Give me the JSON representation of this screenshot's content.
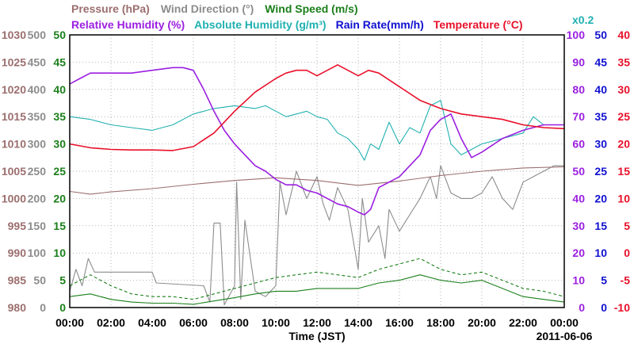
{
  "chart_data": {
    "type": "line",
    "date_label": "2011-06-06",
    "xlabel": "Time (JST)",
    "x_ticks": [
      "00:00",
      "02:00",
      "04:00",
      "06:00",
      "08:00",
      "10:00",
      "12:00",
      "14:00",
      "16:00",
      "18:00",
      "20:00",
      "22:00",
      "00:00"
    ],
    "x_range_hours": [
      0,
      24
    ],
    "grid": true,
    "legend": {
      "row1": [
        {
          "key": "pressure",
          "label": "Pressure (hPa)",
          "color": "#9c6e6e"
        },
        {
          "key": "wind_direction",
          "label": "Wind Direction (°)",
          "color": "#8c8c8c"
        },
        {
          "key": "wind_speed",
          "label": "Wind Speed (m/s)",
          "color": "#1a7f1a"
        }
      ],
      "row2": [
        {
          "key": "relative_humidity",
          "label": "Relative Humidity (%)",
          "color": "#9b1fe0"
        },
        {
          "key": "absolute_humidity",
          "label": "Absolute Humidity (g/m³)",
          "color": "#21b0b0"
        },
        {
          "key": "rain_rate",
          "label": "Rain Rate(mm/h)",
          "color": "#1010d0"
        },
        {
          "key": "temperature",
          "label": "Temperature (°C)",
          "color": "#e8102a"
        }
      ],
      "scale_note": {
        "label": "x0.2",
        "color": "#21b0b0"
      }
    },
    "left_axes": [
      {
        "key": "pressure",
        "color": "#9c6e6e",
        "range": [
          980,
          1030
        ],
        "ticks": [
          "980",
          "985",
          "990",
          "995",
          "1000",
          "1005",
          "1010",
          "1015",
          "1020",
          "1025",
          "1030"
        ]
      },
      {
        "key": "wind_direction",
        "color": "#8c8c8c",
        "range": [
          0,
          500
        ],
        "ticks": [
          "0",
          "50",
          "100",
          "150",
          "200",
          "250",
          "300",
          "350",
          "400",
          "450",
          "500"
        ]
      },
      {
        "key": "wind_speed",
        "color": "#1a7f1a",
        "range": [
          0,
          50
        ],
        "ticks": [
          "0",
          "5",
          "10",
          "15",
          "20",
          "25",
          "30",
          "35",
          "40",
          "45",
          "50"
        ]
      }
    ],
    "right_axes": [
      {
        "key": "relative_humidity",
        "color": "#9b1fe0",
        "range": [
          0,
          100
        ],
        "ticks": [
          "0",
          "10",
          "20",
          "30",
          "40",
          "50",
          "60",
          "70",
          "80",
          "90",
          "100"
        ]
      },
      {
        "key": "rain_rate",
        "color": "#1010d0",
        "range": [
          0,
          50
        ],
        "ticks": [
          "0",
          "5",
          "10",
          "15",
          "20",
          "25",
          "30",
          "35",
          "40",
          "45",
          "50"
        ]
      },
      {
        "key": "temperature",
        "color": "#e8102a",
        "range": [
          -10,
          40
        ],
        "ticks": [
          "-10",
          "-5",
          "0",
          "5",
          "10",
          "15",
          "20",
          "25",
          "30",
          "35",
          "40"
        ]
      }
    ],
    "series": [
      {
        "key": "temperature",
        "name": "Temperature (°C)",
        "color": "#e8102a",
        "axis_range": [
          -10,
          40
        ],
        "x": [
          0,
          1,
          2,
          3,
          4,
          5,
          6,
          7,
          8,
          9,
          10,
          10.5,
          11,
          11.5,
          12,
          12.5,
          13,
          13.5,
          14,
          14.5,
          15,
          16,
          17,
          18,
          19,
          20,
          21,
          22,
          23,
          24
        ],
        "y": [
          20,
          19.3,
          19,
          18.9,
          18.9,
          18.8,
          19.5,
          22,
          26,
          29.5,
          32,
          33,
          33.5,
          33.5,
          32.5,
          33.5,
          34.5,
          33.5,
          32.5,
          33.5,
          33,
          30.5,
          28,
          26.5,
          25.5,
          25,
          24.5,
          23.5,
          23,
          22.8
        ]
      },
      {
        "key": "relative_humidity",
        "name": "Relative Humidity (%)",
        "color": "#9b1fe0",
        "axis_range": [
          0,
          100
        ],
        "x": [
          0,
          0.5,
          1,
          2,
          3,
          4,
          5,
          5.5,
          6,
          6.5,
          7,
          7.5,
          8,
          8.5,
          9,
          9.5,
          10,
          10.5,
          11,
          11.5,
          12,
          12.5,
          13,
          13.5,
          14,
          14.3,
          14.6,
          15,
          16,
          17,
          17.5,
          18,
          18.5,
          19,
          19.5,
          20,
          21,
          22,
          23,
          24
        ],
        "y": [
          82,
          84,
          86,
          86,
          86,
          87,
          88,
          88,
          87,
          80,
          72,
          65,
          60,
          56,
          52,
          50,
          47,
          45,
          45,
          43,
          42,
          40,
          38,
          37,
          35,
          34,
          36,
          44,
          48,
          56,
          65,
          69,
          71,
          62,
          55,
          57,
          62,
          65,
          67,
          67
        ]
      },
      {
        "key": "absolute_humidity",
        "name": "Absolute Humidity (g/m³)",
        "scale": 0.2,
        "color": "#21b0b0",
        "axis_range": [
          0,
          50
        ],
        "x": [
          0,
          1,
          2,
          3,
          4,
          5,
          6,
          7,
          8,
          9,
          9.5,
          10,
          10.5,
          11,
          11.5,
          12,
          12.5,
          13,
          13.5,
          14,
          14.3,
          14.6,
          15,
          15.5,
          16,
          16.5,
          17,
          17.5,
          18,
          18.5,
          19,
          19.5,
          20,
          21,
          22,
          22.5,
          23,
          24
        ],
        "y": [
          35,
          34.5,
          33.5,
          33,
          32.5,
          33.5,
          35.5,
          36.5,
          37,
          36.5,
          37,
          36,
          35,
          35.5,
          36,
          35,
          34.5,
          32,
          31,
          29,
          27,
          30,
          29,
          34,
          30,
          33,
          32,
          37,
          38,
          30,
          28,
          29,
          30,
          31,
          32,
          35,
          33.5,
          33.5
        ]
      },
      {
        "key": "pressure",
        "name": "Pressure (hPa)",
        "color": "#9c6e6e",
        "axis_range": [
          980,
          1030
        ],
        "x": [
          0,
          1,
          2,
          4,
          6,
          8,
          10,
          12,
          14,
          16,
          18,
          20,
          22,
          24
        ],
        "y": [
          1001.3,
          1000.8,
          1001.2,
          1001.8,
          1002.6,
          1003.3,
          1003.8,
          1003.3,
          1002.4,
          1003.2,
          1004.2,
          1005.0,
          1005.6,
          1005.8
        ]
      },
      {
        "key": "wind_direction",
        "name": "Wind Direction (°)",
        "color": "#8c8c8c",
        "axis_range": [
          0,
          500
        ],
        "x": [
          0,
          0.3,
          0.6,
          0.9,
          1.2,
          2,
          4,
          4.2,
          6.5,
          6.8,
          7,
          7.3,
          7.5,
          8,
          8.1,
          8.3,
          8.5,
          9,
          9.5,
          10,
          10.2,
          10.5,
          11,
          11.5,
          12,
          12.3,
          12.6,
          13,
          13.5,
          14,
          14.2,
          14.5,
          15,
          15.3,
          15.5,
          16,
          16.5,
          17,
          17.5,
          17.8,
          18,
          18.5,
          19,
          19.5,
          20,
          20.5,
          21,
          21.5,
          22,
          22.5,
          23,
          23.5,
          24
        ],
        "y": [
          30,
          70,
          40,
          90,
          65,
          65,
          65,
          45,
          40,
          10,
          155,
          155,
          5,
          40,
          230,
          15,
          160,
          30,
          20,
          40,
          230,
          170,
          250,
          200,
          240,
          190,
          160,
          220,
          180,
          70,
          200,
          120,
          150,
          90,
          180,
          140,
          170,
          200,
          240,
          200,
          260,
          210,
          200,
          200,
          210,
          240,
          200,
          180,
          230,
          240,
          250,
          260,
          260
        ]
      },
      {
        "key": "wind_speed",
        "name": "Wind Speed (m/s)",
        "color": "#1a7f1a",
        "axis_range": [
          0,
          50
        ],
        "x": [
          0,
          1,
          2,
          3,
          4,
          5,
          6,
          7,
          8,
          9,
          10,
          11,
          12,
          13,
          14,
          15,
          16,
          17,
          18,
          19,
          20,
          21,
          22,
          23,
          24
        ],
        "y": [
          2,
          2.5,
          1.5,
          1,
          0.8,
          0.8,
          0.6,
          1.2,
          1.8,
          2.5,
          3,
          3,
          3.5,
          3.5,
          3.5,
          4.5,
          5,
          6,
          5,
          4.5,
          5,
          3.5,
          2,
          1.5,
          1
        ]
      },
      {
        "key": "wind_gust",
        "color": "#1a7f1a",
        "dashed": true,
        "axis_range": [
          0,
          50
        ],
        "x": [
          0,
          1,
          2,
          3,
          4,
          5,
          6,
          7,
          8,
          9,
          10,
          11,
          12,
          13,
          14,
          15,
          16,
          17,
          18,
          19,
          20,
          21,
          22,
          23,
          24
        ],
        "y": [
          4,
          6,
          4,
          2.5,
          2,
          2,
          1.5,
          2.5,
          3.5,
          4.5,
          5.5,
          6,
          6.5,
          6,
          5.5,
          7,
          8,
          9,
          7,
          6,
          6.5,
          5,
          3.5,
          3,
          2
        ]
      },
      {
        "key": "rain_rate",
        "name": "Rain Rate(mm/h)",
        "color": "#1010d0",
        "axis_range": [
          0,
          50
        ],
        "x": [
          0,
          24
        ],
        "y": [
          0,
          0
        ]
      }
    ]
  }
}
